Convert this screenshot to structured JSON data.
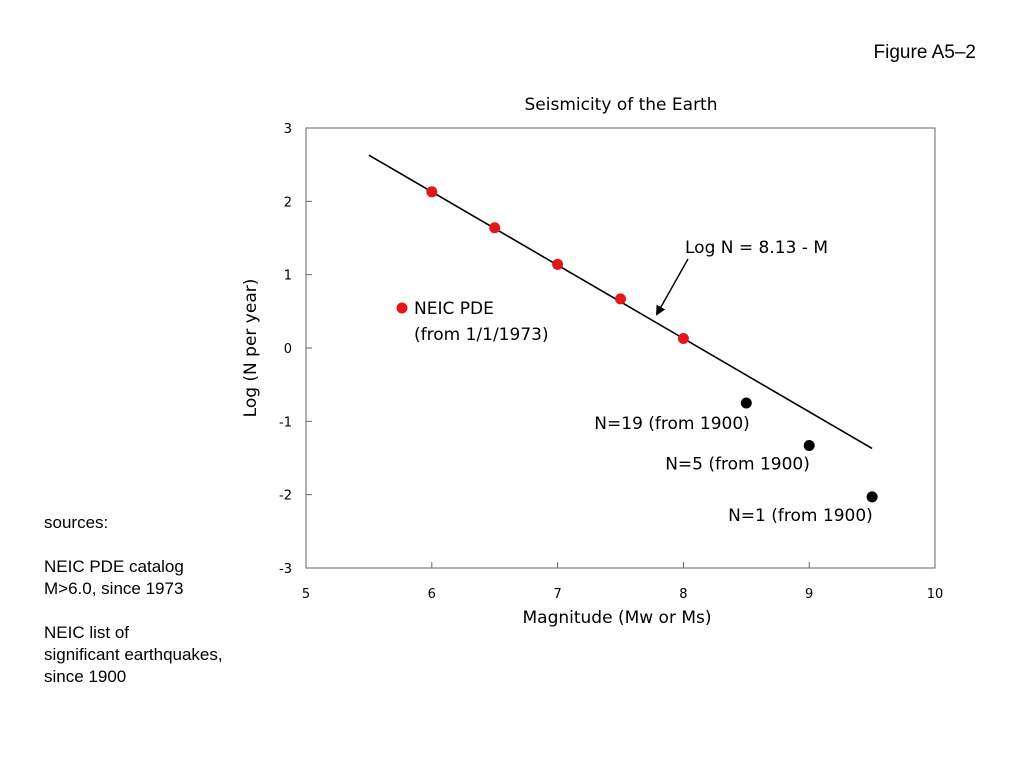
{
  "figure_label": "Figure A5–2",
  "sources": {
    "heading": "sources:",
    "items": [
      [
        "NEIC PDE catalog",
        "M>6.0, since 1973"
      ],
      [
        "NEIC list of",
        "significant earthquakes,",
        "since 1900"
      ]
    ]
  },
  "chart_data": {
    "type": "scatter",
    "title": "Seismicity of the Earth",
    "xlabel": "Magnitude (Mw or Ms)",
    "ylabel": "Log (N per year)",
    "xlim": [
      5,
      10
    ],
    "ylim": [
      -3,
      3
    ],
    "xticks": [
      5,
      6,
      7,
      8,
      9,
      10
    ],
    "yticks": [
      3,
      2,
      1,
      0,
      -1,
      -2,
      -3
    ],
    "grid": false,
    "colors": {
      "neic_pde": "#e3161b",
      "significant": "#000000",
      "fit": "#000000"
    },
    "series": [
      {
        "name": "NEIC PDE (from 1/1/1973)",
        "color": "#e3161b",
        "points": [
          {
            "x": 6.0,
            "y": 2.13
          },
          {
            "x": 6.5,
            "y": 1.64
          },
          {
            "x": 7.0,
            "y": 1.14
          },
          {
            "x": 7.5,
            "y": 0.67
          },
          {
            "x": 8.0,
            "y": 0.13
          }
        ]
      },
      {
        "color": "#000000",
        "points": [
          {
            "x": 8.5,
            "y": -0.75,
            "label": "N=19 (from 1900)"
          },
          {
            "x": 9.0,
            "y": -1.33,
            "label": "N=5 (from 1900)"
          },
          {
            "x": 9.5,
            "y": -2.03,
            "label": "N=1 (from 1900)"
          }
        ]
      }
    ],
    "legend": {
      "line1": "NEIC PDE",
      "line2": "(from 1/1/1973)",
      "placement": "middle-left"
    },
    "fit_line": {
      "equation": "Log N = 8.13 - M",
      "x": [
        5.5,
        9.5
      ],
      "y": [
        2.63,
        -1.37
      ]
    }
  }
}
